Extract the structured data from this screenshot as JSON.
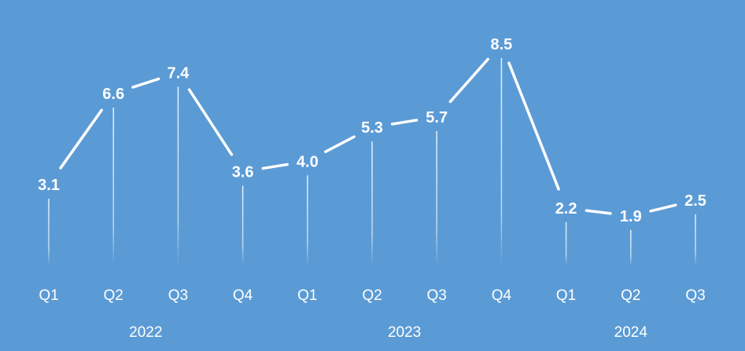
{
  "chart_data": {
    "type": "line",
    "title": "",
    "xlabel": "",
    "ylabel": "",
    "categories": [
      "Q1",
      "Q2",
      "Q3",
      "Q4",
      "Q1",
      "Q2",
      "Q3",
      "Q4",
      "Q1",
      "Q2",
      "Q3"
    ],
    "groups": [
      {
        "label": "2022",
        "span": 4
      },
      {
        "label": "2023",
        "span": 4
      },
      {
        "label": "2024",
        "span": 3
      }
    ],
    "series": [
      {
        "values": [
          3.1,
          6.6,
          7.4,
          3.6,
          4.0,
          5.3,
          5.7,
          8.5,
          2.2,
          1.9,
          2.5
        ]
      }
    ],
    "ylim": [
      0,
      9.5
    ],
    "grid": false,
    "legend": "none",
    "colors": {
      "background": "#5b9bd5",
      "line": "#ffffff",
      "text": "#ffffff"
    }
  }
}
